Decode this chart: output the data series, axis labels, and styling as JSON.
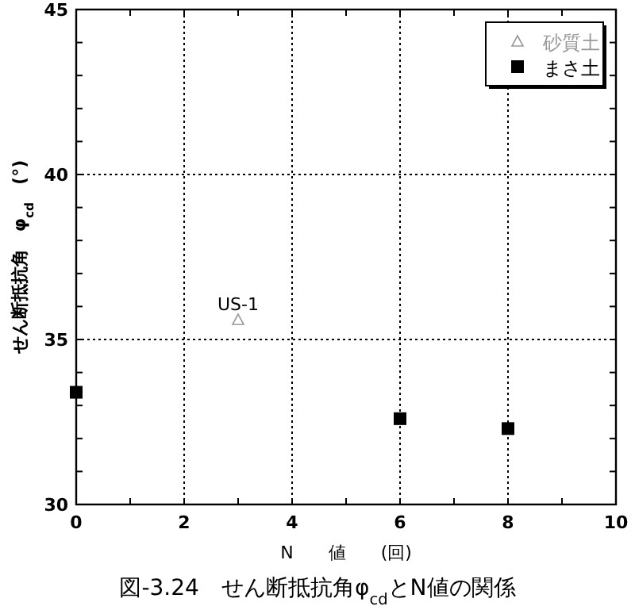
{
  "chart_data": {
    "type": "scatter",
    "xlabel": "N　　値　　(回)",
    "ylabel": "せん断抵抗角　φ$_{cd}$　(°)",
    "xlim": [
      0,
      10
    ],
    "ylim": [
      30,
      45
    ],
    "xticks": [
      0,
      {
        "value": 1,
        "label": null
      },
      2,
      {
        "value": 3,
        "label": null
      },
      4,
      {
        "value": 5,
        "label": null
      },
      6,
      {
        "value": 7,
        "label": null
      },
      8,
      {
        "value": 9,
        "label": null
      },
      10
    ],
    "yticks": [
      30,
      {
        "value": 31,
        "label": null
      },
      {
        "value": 32,
        "label": null
      },
      {
        "value": 33,
        "label": null
      },
      {
        "value": 34,
        "label": null
      },
      35,
      {
        "value": 36,
        "label": null
      },
      {
        "value": 37,
        "label": null
      },
      {
        "value": 38,
        "label": null
      },
      {
        "value": 39,
        "label": null
      },
      40,
      {
        "value": 41,
        "label": null
      },
      {
        "value": 42,
        "label": null
      },
      {
        "value": 43,
        "label": null
      },
      {
        "value": 44,
        "label": null
      },
      45
    ],
    "grid": true,
    "legend": "top right",
    "series": [
      {
        "name": "砂質土",
        "color": "#999999",
        "marker": "triangle",
        "x": [
          3
        ],
        "values": [
          35.6
        ]
      },
      {
        "name": "まさ土",
        "color": "#000000",
        "marker": "square",
        "x": [
          0,
          6,
          8
        ],
        "values": [
          33.4,
          32.6,
          32.3
        ]
      }
    ],
    "annotations": [
      {
        "text": "US-1",
        "x": 3,
        "y": 35.6
      },
      "図-3.24　せん断抵抗角φ$_{cd}$とN値の関係"
    ]
  }
}
